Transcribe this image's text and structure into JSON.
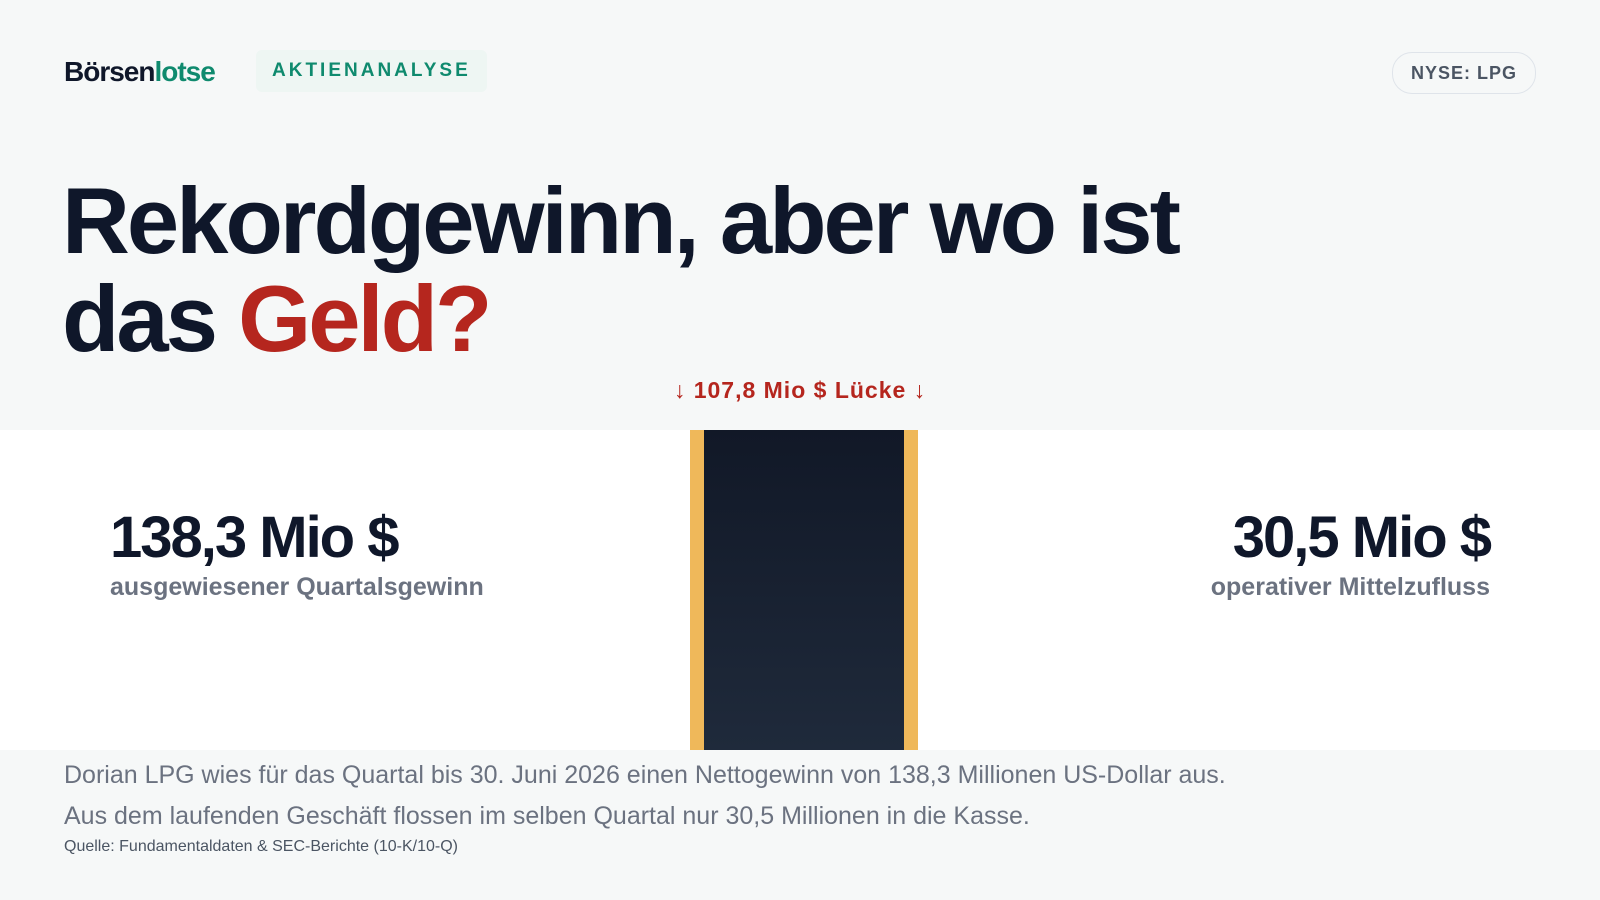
{
  "brand": {
    "logo_main": "Börsen",
    "logo_accent": "lotse",
    "accent_color": "#0f8a6e"
  },
  "header": {
    "section_tag": "AKTIENANALYSE",
    "ticker": "NYSE: LPG"
  },
  "headline": {
    "line1": "Rekordgewinn, aber wo ist",
    "line2_prefix": "das",
    "highlight": "Geld?",
    "highlight_color": "#b5261e"
  },
  "gap": {
    "label": "↓ 107,8 Mio $ Lücke ↓"
  },
  "stats": {
    "left": {
      "value": "138,3 Mio $",
      "label": "ausgewiesener Quartalsgewinn"
    },
    "right": {
      "value": "30,5 Mio $",
      "label": "operativer Mittelzufluss"
    }
  },
  "body": {
    "text": "Dorian LPG wies für das Quartal bis 30. Juni 2026 einen Nettogewinn von 138,3 Millionen US-Dollar aus. Aus dem laufenden Geschäft flossen im selben Quartal nur 30,5 Millionen in die Kasse."
  },
  "source": {
    "text": "Quelle: Fundamentaldaten & SEC-Berichte (10-K/10-Q)"
  }
}
